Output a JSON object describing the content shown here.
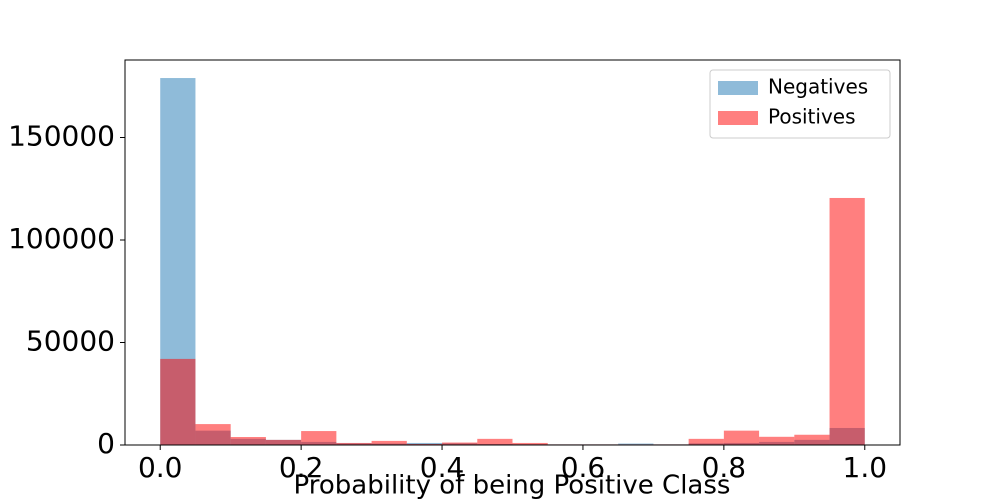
{
  "chart_data": {
    "type": "histogram",
    "xlabel": "Probability of being Positive Class",
    "bins": [
      0,
      0.05,
      0.1,
      0.15,
      0.2,
      0.25,
      0.3,
      0.35,
      0.4,
      0.45,
      0.5,
      0.55,
      0.6,
      0.65,
      0.7,
      0.75,
      0.8,
      0.85,
      0.9,
      0.95,
      1.0
    ],
    "series": [
      {
        "name": "Negatives",
        "color": "#1f77b4",
        "values": [
          179000,
          7000,
          3000,
          2500,
          1500,
          800,
          700,
          1000,
          800,
          500,
          400,
          300,
          300,
          700,
          300,
          800,
          1000,
          1500,
          2500,
          8300
        ]
      },
      {
        "name": "Positives",
        "color": "#ff0000",
        "values": [
          42000,
          10200,
          3900,
          2500,
          6800,
          1000,
          2000,
          500,
          1200,
          3000,
          1000,
          300,
          300,
          300,
          300,
          3000,
          7000,
          4000,
          5000,
          120500
        ]
      }
    ],
    "alpha": 0.5,
    "xlim": [
      -0.05,
      1.05
    ],
    "ylim": [
      0,
      187800
    ],
    "xticks": [
      {
        "value": 0,
        "label": "0.0"
      },
      {
        "value": 0.2,
        "label": "0.2"
      },
      {
        "value": 0.4,
        "label": "0.4"
      },
      {
        "value": 0.6,
        "label": "0.6"
      },
      {
        "value": 0.8,
        "label": "0.8"
      },
      {
        "value": 1.0,
        "label": "1.0"
      }
    ],
    "yticks": [
      0,
      50000,
      100000,
      150000
    ],
    "legend": "upper right"
  }
}
